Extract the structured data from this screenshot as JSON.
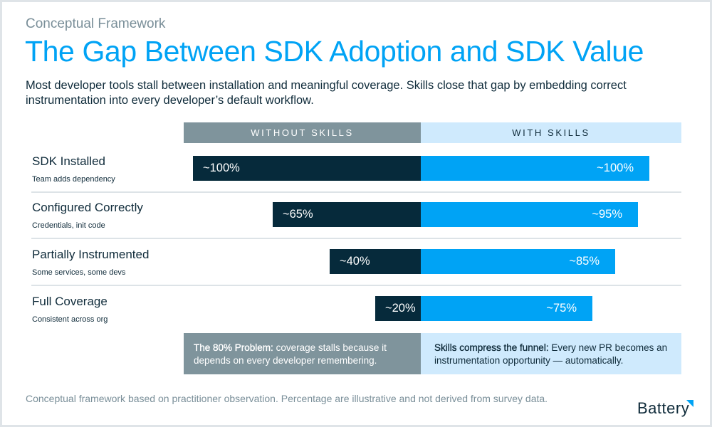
{
  "eyebrow": "Conceptual Framework",
  "title": "The Gap Between SDK Adoption and SDK Value",
  "subtitle": "Most developer tools stall between installation and meaningful coverage. Skills close that gap by embedding correct instrumentation into every developer’s default workflow.",
  "colors": {
    "without": "#062a3b",
    "with": "#00a3f5",
    "without_header": "#7f949c",
    "with_header": "#cfeafd",
    "title": "#00a3f5"
  },
  "chart_data": {
    "type": "bar",
    "orientation": "horizontal-diverging",
    "title": "The Gap Between SDK Adoption and SDK Value",
    "categories": [
      "SDK Installed",
      "Configured Correctly",
      "Partially Instrumented",
      "Full Coverage"
    ],
    "category_descriptions": [
      "Team adds dependency",
      "Credentials, init code",
      "Some services, some devs",
      "Consistent across org"
    ],
    "series": [
      {
        "name": "WITHOUT SKILLS",
        "values": [
          100,
          65,
          40,
          20
        ],
        "labels": [
          "~100%",
          "~65%",
          "~40%",
          "~20%"
        ],
        "direction": "left"
      },
      {
        "name": "WITH SKILLS",
        "values": [
          100,
          95,
          85,
          75
        ],
        "labels": [
          "~100%",
          "~95%",
          "~85%",
          "~75%"
        ],
        "direction": "right"
      }
    ],
    "xlim": [
      0,
      100
    ],
    "xlabel": "",
    "ylabel": "",
    "grid": false,
    "legend": "top (column headers)"
  },
  "callouts": {
    "left": {
      "bold": "The 80% Problem:",
      "text": " coverage stalls because it depends on every developer remembering."
    },
    "right": {
      "bold": "Skills compress the funnel:",
      "text": " Every new PR becomes an instrumentation opportunity — automatically."
    }
  },
  "footnote": "Conceptual framework based on practitioner observation. Percentage are illustrative and not derived from survey data.",
  "logo": {
    "text": "Battery",
    "icon": "corner-triangle-icon"
  }
}
